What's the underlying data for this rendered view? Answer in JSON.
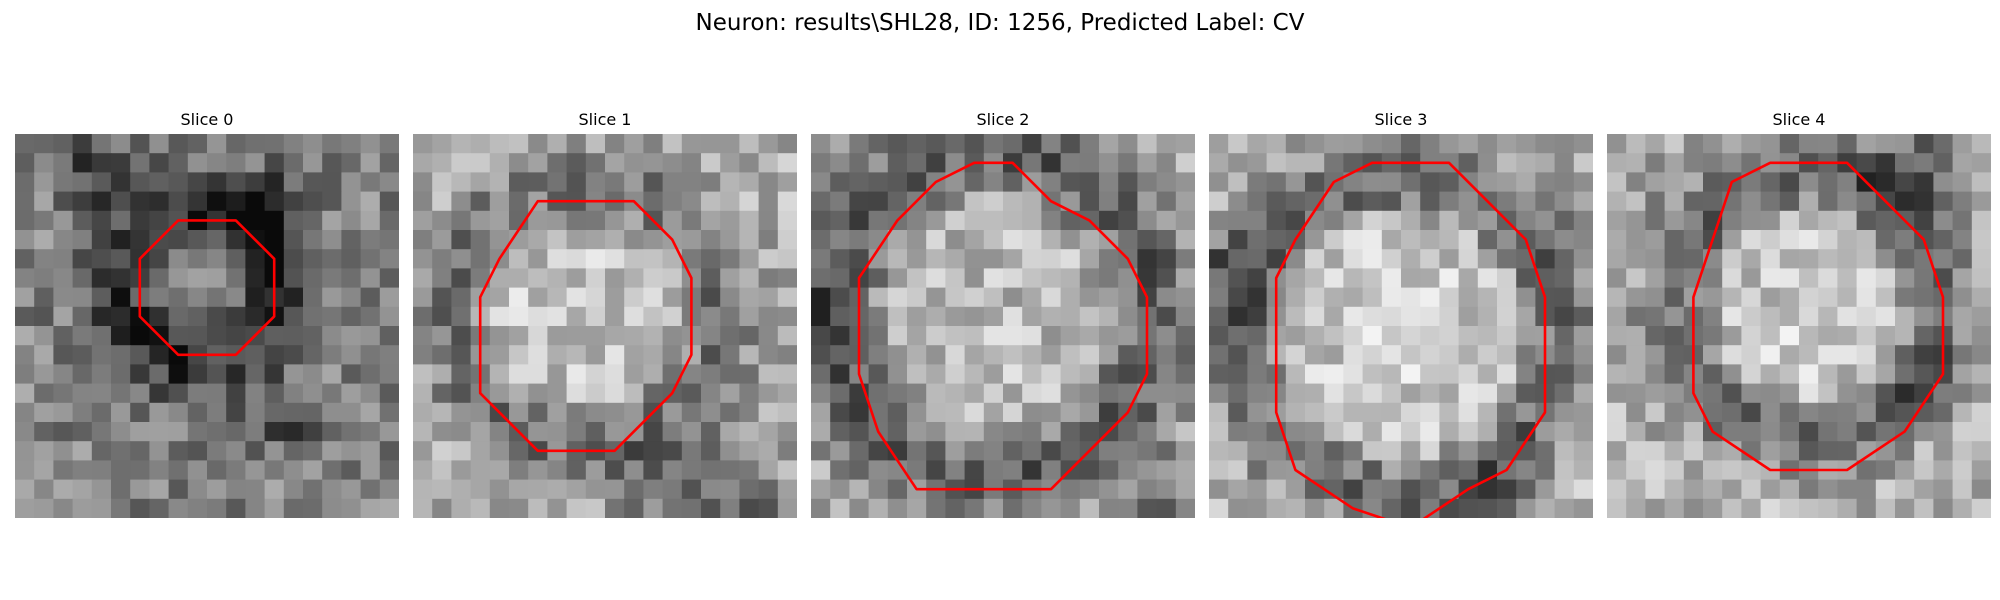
{
  "figure": {
    "title": "Neuron: results\\SHL28, ID: 1256, Predicted Label: CV",
    "contour_color": "#ff0000",
    "colormap": "gray"
  },
  "slices": [
    {
      "title": "Slice 0",
      "seed": 11,
      "base": 130,
      "contour": [
        [
          8,
          4
        ],
        [
          11,
          4
        ],
        [
          13,
          6
        ],
        [
          13,
          9
        ],
        [
          11,
          11
        ],
        [
          8,
          11
        ],
        [
          6,
          9
        ],
        [
          6,
          6
        ]
      ],
      "dark_ring": [
        [
          9.5,
          8,
          4,
          2.2,
          80
        ]
      ],
      "blobs": [
        [
          13,
          4,
          2,
          70
        ],
        [
          4,
          2,
          2,
          60
        ],
        [
          14,
          15,
          1.5,
          80
        ],
        [
          2,
          6,
          1,
          -80
        ]
      ]
    },
    {
      "title": "Slice 1",
      "seed": 23,
      "base": 175,
      "contour": [
        [
          6,
          3
        ],
        [
          11,
          3
        ],
        [
          13,
          5
        ],
        [
          14,
          7
        ],
        [
          14,
          11
        ],
        [
          13,
          13
        ],
        [
          11,
          15
        ],
        [
          10,
          16
        ],
        [
          6,
          16
        ],
        [
          3,
          13
        ],
        [
          3,
          8
        ],
        [
          4,
          6
        ]
      ],
      "dark_ring": [
        [
          9,
          9.5,
          7,
          2,
          60
        ]
      ],
      "blobs": [
        [
          14,
          19,
          3,
          70
        ],
        [
          18,
          19,
          2,
          50
        ],
        [
          2,
          3,
          1,
          -40
        ]
      ]
    },
    {
      "title": "Slice 2",
      "seed": 37,
      "base": 165,
      "contour": [
        [
          6,
          2
        ],
        [
          8,
          1
        ],
        [
          10,
          1
        ],
        [
          12,
          3
        ],
        [
          14,
          4
        ],
        [
          16,
          6
        ],
        [
          17,
          8
        ],
        [
          17,
          12
        ],
        [
          16,
          14
        ],
        [
          14,
          16
        ],
        [
          12,
          18
        ],
        [
          5,
          18
        ],
        [
          3,
          15
        ],
        [
          2,
          12
        ],
        [
          2,
          7
        ],
        [
          4,
          4
        ]
      ],
      "dark_ring": [
        [
          9.5,
          9.5,
          8.5,
          2.2,
          70
        ]
      ],
      "blobs": [
        [
          18,
          19,
          2,
          60
        ],
        [
          1,
          10,
          2,
          50
        ]
      ]
    },
    {
      "title": "Slice 3",
      "seed": 49,
      "base": 180,
      "contour": [
        [
          6,
          2
        ],
        [
          8,
          1
        ],
        [
          12,
          1
        ],
        [
          14,
          3
        ],
        [
          16,
          5
        ],
        [
          17,
          8
        ],
        [
          17,
          14
        ],
        [
          15,
          17
        ],
        [
          13,
          18
        ],
        [
          10,
          20
        ],
        [
          7,
          19
        ],
        [
          4,
          17
        ],
        [
          3,
          14
        ],
        [
          3,
          7
        ],
        [
          4,
          5
        ]
      ],
      "dark_ring": [
        [
          10,
          10.5,
          8.3,
          2,
          75
        ]
      ],
      "blobs": [
        [
          1,
          7,
          2,
          70
        ],
        [
          18,
          6,
          2,
          40
        ],
        [
          15,
          19,
          2,
          50
        ]
      ]
    },
    {
      "title": "Slice 4",
      "seed": 61,
      "base": 180,
      "contour": [
        [
          6,
          2
        ],
        [
          8,
          1
        ],
        [
          12,
          1
        ],
        [
          14,
          3
        ],
        [
          16,
          5
        ],
        [
          17,
          8
        ],
        [
          17,
          12
        ],
        [
          15,
          15
        ],
        [
          12,
          17
        ],
        [
          8,
          17
        ],
        [
          5,
          15
        ],
        [
          4,
          13
        ],
        [
          4,
          8
        ],
        [
          5,
          5
        ]
      ],
      "dark_ring": [
        [
          10.5,
          9,
          7,
          2,
          75
        ]
      ],
      "blobs": [
        [
          16,
          2,
          3,
          80
        ],
        [
          2,
          2,
          2,
          40
        ],
        [
          16,
          13,
          1.5,
          50
        ]
      ]
    }
  ]
}
